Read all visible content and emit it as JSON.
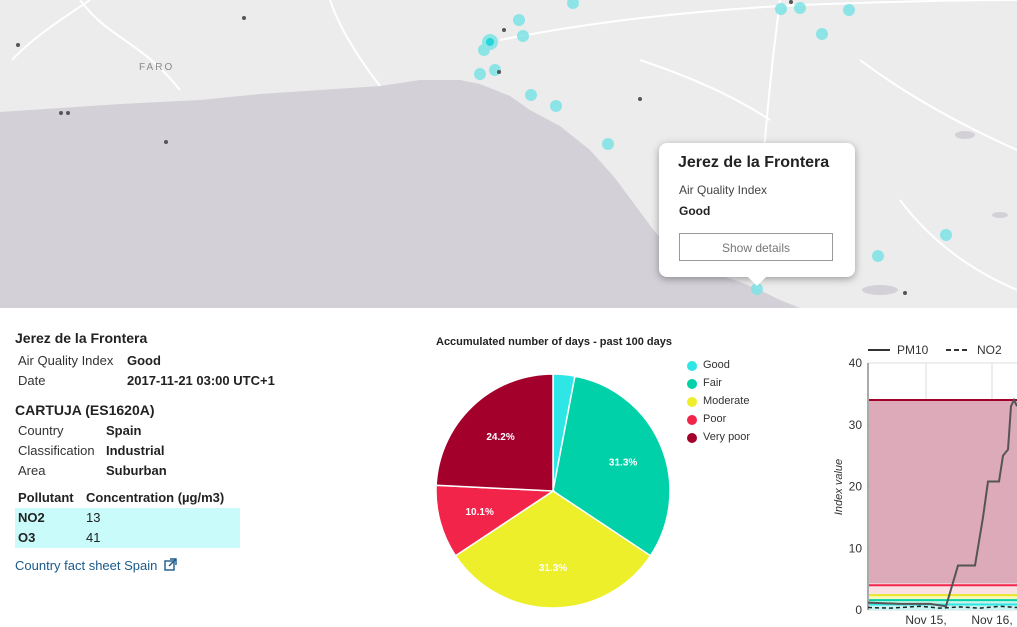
{
  "map": {
    "place_label": "FARO"
  },
  "popup": {
    "title": "Jerez de la Frontera",
    "subtitle": "Air Quality Index",
    "value": "Good",
    "button_label": "Show details"
  },
  "info": {
    "city": "Jerez de la Frontera",
    "aqi_label": "Air Quality Index",
    "aqi_value": "Good",
    "date_label": "Date",
    "date_value": "2017-11-21 03:00 UTC+1",
    "station": "CARTUJA (ES1620A)",
    "country_label": "Country",
    "country_value": "Spain",
    "classification_label": "Classification",
    "classification_value": "Industrial",
    "area_label": "Area",
    "area_value": "Suburban",
    "table": {
      "col1": "Pollutant",
      "col2": "Concentration (µg/m3)",
      "rows": [
        {
          "pollutant": "NO2",
          "value": "13"
        },
        {
          "pollutant": "O3",
          "value": "41"
        }
      ]
    },
    "fact_sheet_link": "Country fact sheet Spain"
  },
  "chart_data": [
    {
      "type": "pie",
      "title": "Accumulated number of days - past 100 days",
      "categories": [
        "Good",
        "Fair",
        "Moderate",
        "Poor",
        "Very poor"
      ],
      "values": [
        3.0,
        31.3,
        31.3,
        10.1,
        24.2
      ],
      "labels": [
        "",
        "31.3%",
        "31.3%",
        "10.1%",
        "24.2%"
      ],
      "colors": [
        "#2ee6e6",
        "#00d1a8",
        "#ecef2a",
        "#f2244a",
        "#a3002c"
      ],
      "legend_position": "right"
    },
    {
      "type": "line",
      "ylabel": "Index value",
      "yticks": [
        0,
        10,
        20,
        30,
        40
      ],
      "ylim": [
        0,
        40
      ],
      "xticks": [
        "Nov 15,",
        "Nov 16,"
      ],
      "series": [
        {
          "name": "PM10",
          "style": "solid"
        },
        {
          "name": "NO2",
          "style": "dashed"
        }
      ]
    }
  ]
}
